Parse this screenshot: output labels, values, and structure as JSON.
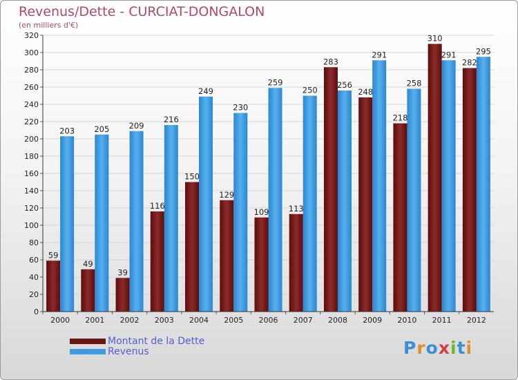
{
  "chart_data": {
    "type": "bar",
    "title": "Revenus/Dette - CURCIAT-DONGALON",
    "subtitle": "(en milliers d'€)",
    "categories": [
      "2000",
      "2001",
      "2002",
      "2003",
      "2004",
      "2005",
      "2006",
      "2007",
      "2008",
      "2009",
      "2010",
      "2011",
      "2012"
    ],
    "series": [
      {
        "name": "Montant de la Dette",
        "color": "#7a1e1e",
        "values": [
          59,
          49,
          39,
          116,
          150,
          129,
          109,
          113,
          283,
          248,
          218,
          310,
          282
        ]
      },
      {
        "name": "Revenus",
        "color": "#3d9be0",
        "values": [
          203,
          205,
          209,
          216,
          249,
          230,
          259,
          250,
          256,
          291,
          258,
          291,
          295
        ]
      }
    ],
    "ylim": [
      0,
      320
    ],
    "ytick_step": 20,
    "grid": true,
    "legend_position": "bottom-left"
  },
  "logo": {
    "text": "Proxiti"
  }
}
